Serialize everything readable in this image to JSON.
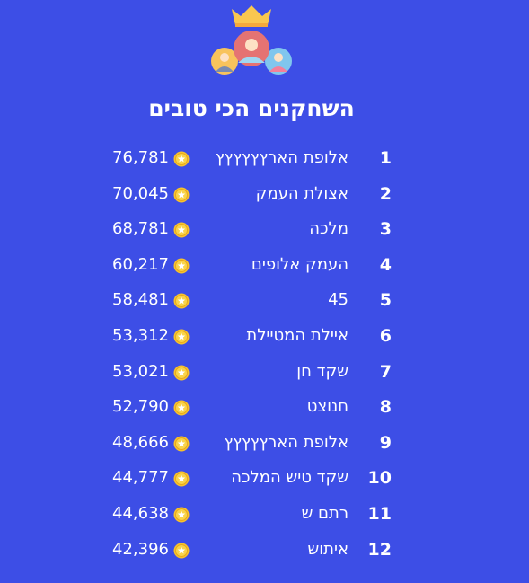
{
  "leaderboard": {
    "title": "השחקנים הכי טובים",
    "header_icon": "crowned-players-icon",
    "coin_icon": "coin-star-icon",
    "colors": {
      "background": "#3d4ee6",
      "text": "#ffffff",
      "coin": "#f7c22c",
      "crown": "#f9c74f"
    },
    "rows": [
      {
        "rank": "1",
        "name": "אלופת הארץץץץץץ",
        "score": "76,781"
      },
      {
        "rank": "2",
        "name": "אצולת העמק",
        "score": "70,045"
      },
      {
        "rank": "3",
        "name": "מלכה",
        "score": "68,781"
      },
      {
        "rank": "4",
        "name": "העמק אלופים",
        "score": "60,217"
      },
      {
        "rank": "5",
        "name": "45",
        "score": "58,481"
      },
      {
        "rank": "6",
        "name": "איילת המטיילת",
        "score": "53,312"
      },
      {
        "rank": "7",
        "name": "שקד חן",
        "score": "53,021"
      },
      {
        "rank": "8",
        "name": "חנוצט",
        "score": "52,790"
      },
      {
        "rank": "9",
        "name": "אלופת הארץץץץץ",
        "score": "48,666"
      },
      {
        "rank": "10",
        "name": "שקד טיש המלכה",
        "score": "44,777"
      },
      {
        "rank": "11",
        "name": "רתם ש",
        "score": "44,638"
      },
      {
        "rank": "12",
        "name": "איתוש",
        "score": "42,396"
      }
    ]
  }
}
